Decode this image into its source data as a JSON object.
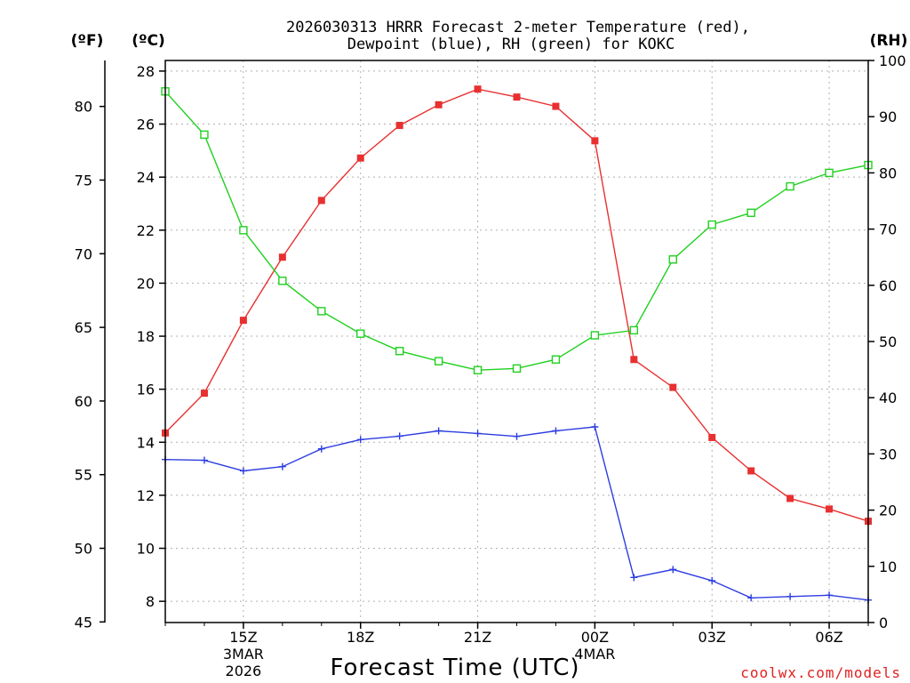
{
  "title": {
    "line1": "2026030313 HRRR Forecast 2-meter Temperature (red),",
    "line2": "Dewpoint (blue), RH (green) for KOKC"
  },
  "units": {
    "fahrenheit": "(ºF)",
    "celsius": "(ºC)",
    "rh": "(RH)"
  },
  "credit": "coolwx.com/models",
  "chart_data": {
    "type": "line",
    "title": "2026030313 HRRR Forecast 2-meter Temperature (red), Dewpoint (blue), RH (green) for KOKC",
    "xlabel": "Forecast Time (UTC)",
    "x_hours": [
      0,
      1,
      2,
      3,
      4,
      5,
      6,
      7,
      8,
      9,
      10,
      11,
      12,
      13,
      14,
      15,
      16,
      17,
      18
    ],
    "x_ticks": [
      {
        "hour": 2,
        "label": "15Z",
        "sub1": "3MAR",
        "sub2": "2026"
      },
      {
        "hour": 5,
        "label": "18Z"
      },
      {
        "hour": 8,
        "label": "21Z"
      },
      {
        "hour": 11,
        "label": "00Z",
        "sub1": "4MAR"
      },
      {
        "hour": 14,
        "label": "03Z"
      },
      {
        "hour": 17,
        "label": "06Z"
      }
    ],
    "left_axis_c": {
      "label": "(ºC)",
      "ylim": [
        7.2,
        28.4
      ],
      "ticks": [
        8,
        10,
        12,
        14,
        16,
        18,
        20,
        22,
        24,
        26,
        28
      ]
    },
    "left_axis_f": {
      "label": "(ºF)",
      "ticks": [
        45,
        50,
        55,
        60,
        65,
        70,
        75,
        80
      ]
    },
    "right_axis_rh": {
      "label": "(RH)",
      "ylim": [
        0,
        100
      ],
      "ticks": [
        0,
        10,
        20,
        30,
        40,
        50,
        60,
        70,
        80,
        90,
        100
      ]
    },
    "series": [
      {
        "name": "Temperature (°C)",
        "axis": "C",
        "color": "#e83030",
        "marker": "square-filled",
        "values": [
          14.35,
          15.85,
          18.6,
          20.98,
          23.12,
          24.72,
          25.95,
          26.73,
          27.32,
          27.02,
          26.67,
          25.37,
          17.12,
          16.07,
          14.18,
          12.92,
          11.88,
          11.48,
          11.02
        ]
      },
      {
        "name": "Dewpoint (°C)",
        "axis": "C",
        "color": "#2d3de0",
        "marker": "plus",
        "values": [
          13.35,
          13.32,
          12.92,
          13.08,
          13.75,
          14.1,
          14.23,
          14.43,
          14.33,
          14.22,
          14.43,
          14.58,
          8.9,
          9.2,
          8.78,
          8.13,
          8.18,
          8.23,
          8.05
        ]
      },
      {
        "name": "RH (%)",
        "axis": "RH",
        "color": "#20d020",
        "marker": "square-open",
        "values": [
          94.5,
          86.8,
          69.8,
          60.8,
          55.4,
          51.4,
          48.3,
          46.5,
          44.9,
          45.2,
          46.8,
          51.1,
          52.0,
          64.6,
          70.8,
          72.9,
          77.6,
          80.0,
          81.4
        ]
      }
    ]
  }
}
